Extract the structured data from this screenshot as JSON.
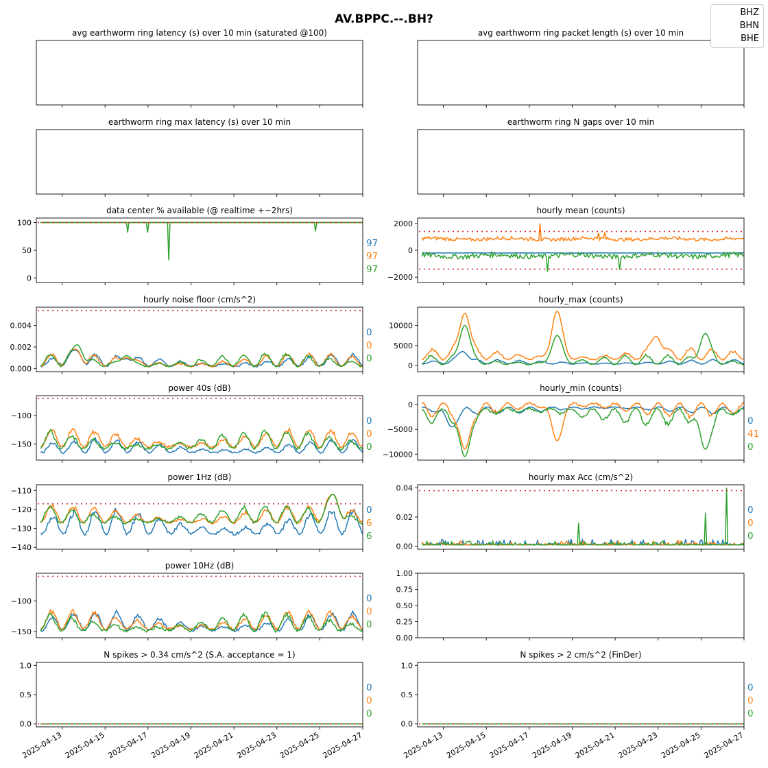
{
  "figure": {
    "title": "AV.BPPC.--.BH?",
    "legend": [
      {
        "label": "BHZ",
        "color": "#1f77b4"
      },
      {
        "label": "BHN",
        "color": "#ff7f0e"
      },
      {
        "label": "BHE",
        "color": "#2ca02c"
      }
    ],
    "x_tick_labels": [
      "2025-04-13",
      "2025-04-15",
      "2025-04-17",
      "2025-04-19",
      "2025-04-21",
      "2025-04-23",
      "2025-04-25",
      "2025-04-27"
    ],
    "threshold_color": "#d62728"
  },
  "chart_data": [
    {
      "type": "line",
      "title": "avg earthworm ring latency (s)   over 10 min (saturated @100)",
      "ylim": [
        0,
        1
      ],
      "yticks": [],
      "empty": true
    },
    {
      "type": "line",
      "title": "avg earthworm ring packet length (s)   over 10 min",
      "ylim": [
        0,
        1
      ],
      "yticks": [],
      "empty": true
    },
    {
      "type": "line",
      "title": "earthworm ring max latency (s)   over 10 min",
      "ylim": [
        0,
        1
      ],
      "yticks": [],
      "empty": true
    },
    {
      "type": "line",
      "title": "earthworm ring N gaps   over 10 min",
      "ylim": [
        0,
        1
      ],
      "yticks": [],
      "empty": true
    },
    {
      "type": "line",
      "title": "data center % available (@ realtime +~2hrs)",
      "ylim": [
        -8,
        108
      ],
      "yticks": [
        0,
        50,
        100
      ],
      "threshold": [
        100
      ],
      "side_values": [
        "97",
        "97",
        "97"
      ],
      "series": [
        {
          "name": "BHZ",
          "pattern": "flat",
          "base": 100,
          "amp": 0
        },
        {
          "name": "BHN",
          "pattern": "flat",
          "base": 100,
          "amp": 0
        },
        {
          "name": "BHE",
          "pattern": "flat",
          "base": 100,
          "amp": 0,
          "dips": [
            [
              4.05,
              82
            ],
            [
              5.0,
              82
            ],
            [
              5.95,
              32
            ],
            [
              12.8,
              84
            ]
          ]
        }
      ]
    },
    {
      "type": "line",
      "title": "hourly mean (counts)",
      "ylim": [
        -2400,
        2400
      ],
      "yticks": [
        -2000,
        0,
        2000
      ],
      "threshold": [
        1400,
        -1400
      ],
      "series": [
        {
          "name": "BHZ",
          "pattern": "flat",
          "base": -200,
          "amp": 20
        },
        {
          "name": "BHN",
          "pattern": "noise",
          "base": 850,
          "amp": 180,
          "spikes": [
            [
              5.5,
              2000
            ],
            [
              8.2,
              1300
            ],
            [
              8.5,
              1350
            ]
          ]
        },
        {
          "name": "BHE",
          "pattern": "noise",
          "base": -400,
          "amp": 260,
          "spikes": [
            [
              5.85,
              -1600
            ],
            [
              9.2,
              -1450
            ]
          ]
        }
      ]
    },
    {
      "type": "line",
      "title": "hourly noise floor (cm/s^2)",
      "ylim": [
        -0.0003,
        0.0057
      ],
      "yticks": [
        0,
        0.002,
        0.004
      ],
      "ytick_labels": [
        "0.000",
        "0.002",
        "0.004"
      ],
      "threshold": [
        0.0054
      ],
      "side_values": [
        "0",
        "0",
        "0"
      ],
      "series": [
        {
          "name": "BHZ",
          "pattern": "diurnal",
          "base": 0.0002,
          "amp": 0.0012,
          "events": [
            [
              1.6,
              0.0017
            ],
            [
              4.0,
              0.0009
            ]
          ]
        },
        {
          "name": "BHN",
          "pattern": "diurnal",
          "base": 0.0002,
          "amp": 0.0013,
          "events": [
            [
              1.6,
              0.0018
            ],
            [
              4.0,
              0.001
            ]
          ]
        },
        {
          "name": "BHE",
          "pattern": "diurnal",
          "base": 0.0002,
          "amp": 0.0013,
          "events": [
            [
              1.7,
              0.0022
            ],
            [
              4.0,
              0.0012
            ]
          ]
        }
      ]
    },
    {
      "type": "line",
      "title": "hourly_max (counts)",
      "ylim": [
        -1500,
        14500
      ],
      "yticks": [
        0,
        5000,
        10000
      ],
      "series": [
        {
          "name": "BHZ",
          "pattern": "diurnal",
          "base": 400,
          "amp": 1200,
          "events": [
            [
              1.9,
              3500
            ]
          ]
        },
        {
          "name": "BHN",
          "pattern": "diurnal",
          "base": 1500,
          "amp": 3000,
          "events": [
            [
              2.0,
              13000
            ],
            [
              6.3,
              13500
            ],
            [
              10.9,
              7300
            ]
          ]
        },
        {
          "name": "BHE",
          "pattern": "diurnal",
          "base": 300,
          "amp": 2500,
          "events": [
            [
              2.0,
              10000
            ],
            [
              6.3,
              7500
            ],
            [
              13.2,
              8000
            ]
          ]
        }
      ]
    },
    {
      "type": "line",
      "title": "power 40s (dB)",
      "ylim": [
        -178,
        -65
      ],
      "yticks": [
        -150,
        -100
      ],
      "threshold": [
        -70
      ],
      "side_values": [
        "0",
        "0",
        "0"
      ],
      "series": [
        {
          "name": "BHZ",
          "pattern": "diurnal",
          "base": -165,
          "amp": 25
        },
        {
          "name": "BHN",
          "pattern": "diurnal",
          "base": -155,
          "amp": 35
        },
        {
          "name": "BHE",
          "pattern": "diurnal",
          "base": -158,
          "amp": 35
        }
      ]
    },
    {
      "type": "line",
      "title": "hourly_min (counts)",
      "ylim": [
        -11200,
        1800
      ],
      "yticks": [
        -10000,
        -5000,
        0
      ],
      "side_values": [
        "0",
        "41",
        "0"
      ],
      "series": [
        {
          "name": "BHZ",
          "pattern": "diurnal",
          "base": -500,
          "amp": -1500,
          "events": [
            [
              1.4,
              -4500
            ]
          ]
        },
        {
          "name": "BHN",
          "pattern": "diurnal",
          "base": 300,
          "amp": -3000,
          "events": [
            [
              2.0,
              -9000
            ],
            [
              6.3,
              -7300
            ]
          ]
        },
        {
          "name": "BHE",
          "pattern": "diurnal",
          "base": -800,
          "amp": -3500,
          "events": [
            [
              2.0,
              -10500
            ],
            [
              13.2,
              -9000
            ]
          ]
        }
      ]
    },
    {
      "type": "line",
      "title": "power 1Hz (dB)",
      "ylim": [
        -141,
        -107
      ],
      "yticks": [
        -140,
        -130,
        -120,
        -110
      ],
      "threshold": [
        -117
      ],
      "side_values": [
        "0",
        "6",
        "6"
      ],
      "series": [
        {
          "name": "BHZ",
          "pattern": "diurnal",
          "base": -133,
          "amp": 14
        },
        {
          "name": "BHN",
          "pattern": "diurnal",
          "base": -127,
          "amp": 10,
          "events": [
            [
              13.6,
              -112
            ]
          ]
        },
        {
          "name": "BHE",
          "pattern": "diurnal",
          "base": -127,
          "amp": 10,
          "events": [
            [
              13.6,
              -112
            ]
          ]
        }
      ]
    },
    {
      "type": "line",
      "title": "hourly max Acc (cm/s^2)",
      "ylim": [
        -0.002,
        0.042
      ],
      "yticks": [
        0,
        0.02,
        0.04
      ],
      "ytick_labels": [
        "0.00",
        "0.02",
        "0.04"
      ],
      "threshold": [
        0.038
      ],
      "side_values": [
        "0",
        "0",
        "0"
      ],
      "series": [
        {
          "name": "BHZ",
          "pattern": "spiky",
          "base": 0.001,
          "amp": 0.004
        },
        {
          "name": "BHN",
          "pattern": "spiky",
          "base": 0.001,
          "amp": 0.003
        },
        {
          "name": "BHE",
          "pattern": "spiky",
          "base": 0.001,
          "amp": 0.003,
          "spikes": [
            [
              7.3,
              0.016
            ],
            [
              13.2,
              0.023
            ],
            [
              14.2,
              0.04
            ]
          ]
        }
      ]
    },
    {
      "type": "line",
      "title": "power 10Hz (dB)",
      "ylim": [
        -160,
        -55
      ],
      "yticks": [
        -150,
        -100
      ],
      "threshold": [
        -60
      ],
      "side_values": [
        "0",
        "0",
        "0"
      ],
      "series": [
        {
          "name": "BHZ",
          "pattern": "diurnal",
          "base": -148,
          "amp": 32
        },
        {
          "name": "BHN",
          "pattern": "diurnal",
          "base": -146,
          "amp": 32
        },
        {
          "name": "BHE",
          "pattern": "diurnal",
          "base": -149,
          "amp": 32
        }
      ]
    },
    {
      "type": "line",
      "title": "",
      "ylim": [
        0,
        1
      ],
      "yticks": [
        0,
        0.25,
        0.5,
        0.75,
        1
      ],
      "ytick_labels": [
        "0.00",
        "0.25",
        "0.50",
        "0.75",
        "1.00"
      ],
      "empty": true
    },
    {
      "type": "line",
      "title": "N spikes > 0.34 cm/s^2 (S.A. acceptance = 1)",
      "ylim": [
        -0.05,
        1.05
      ],
      "yticks": [
        0,
        0.5,
        1
      ],
      "ytick_labels": [
        "0.0",
        "0.5",
        "1.0"
      ],
      "threshold": [
        0
      ],
      "side_values": [
        "0",
        "0",
        "0"
      ],
      "series": [
        {
          "name": "BHZ",
          "pattern": "flat",
          "base": 0,
          "amp": 0
        },
        {
          "name": "BHN",
          "pattern": "flat",
          "base": 0,
          "amp": 0
        },
        {
          "name": "BHE",
          "pattern": "flat",
          "base": 0,
          "amp": 0
        }
      ]
    },
    {
      "type": "line",
      "title": "N spikes > 2 cm/s^2 (FinDer)",
      "ylim": [
        -0.05,
        1.05
      ],
      "yticks": [
        0,
        0.5,
        1
      ],
      "ytick_labels": [
        "0.0",
        "0.5",
        "1.0"
      ],
      "threshold": [
        0
      ],
      "side_values": [
        "0",
        "0",
        "0"
      ],
      "series": [
        {
          "name": "BHZ",
          "pattern": "flat",
          "base": 0,
          "amp": 0
        },
        {
          "name": "BHN",
          "pattern": "flat",
          "base": 0,
          "amp": 0
        },
        {
          "name": "BHE",
          "pattern": "flat",
          "base": 0,
          "amp": 0
        }
      ]
    }
  ]
}
